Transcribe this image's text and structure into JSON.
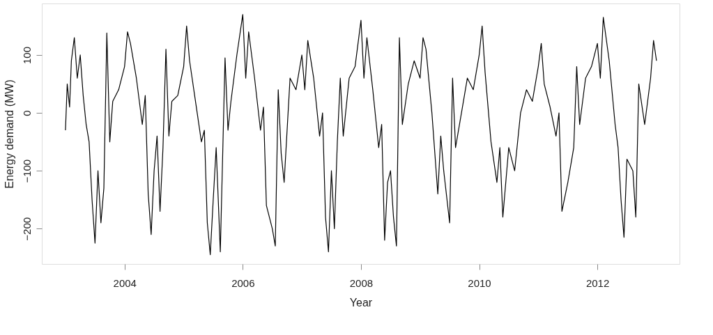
{
  "chart_data": {
    "type": "line",
    "xlabel": "Year",
    "ylabel": "Energy demand (MW)",
    "x": [
      2003.0,
      2003.03,
      2003.07,
      2003.1,
      2003.15,
      2003.2,
      2003.25,
      2003.3,
      2003.35,
      2003.4,
      2003.45,
      2003.5,
      2003.55,
      2003.6,
      2003.65,
      2003.7,
      2003.75,
      2003.8,
      2003.9,
      2004.0,
      2004.05,
      2004.1,
      2004.2,
      2004.3,
      2004.35,
      2004.4,
      2004.45,
      2004.5,
      2004.55,
      2004.6,
      2004.65,
      2004.7,
      2004.75,
      2004.8,
      2004.9,
      2005.0,
      2005.05,
      2005.1,
      2005.2,
      2005.3,
      2005.35,
      2005.4,
      2005.45,
      2005.5,
      2005.55,
      2005.62,
      2005.7,
      2005.75,
      2005.8,
      2005.9,
      2006.0,
      2006.05,
      2006.1,
      2006.2,
      2006.3,
      2006.35,
      2006.4,
      2006.5,
      2006.55,
      2006.6,
      2006.65,
      2006.7,
      2006.8,
      2006.9,
      2007.0,
      2007.05,
      2007.1,
      2007.2,
      2007.3,
      2007.35,
      2007.4,
      2007.45,
      2007.5,
      2007.55,
      2007.6,
      2007.65,
      2007.7,
      2007.8,
      2007.9,
      2008.0,
      2008.05,
      2008.1,
      2008.2,
      2008.3,
      2008.35,
      2008.4,
      2008.45,
      2008.5,
      2008.55,
      2008.6,
      2008.65,
      2008.7,
      2008.8,
      2008.9,
      2009.0,
      2009.05,
      2009.1,
      2009.2,
      2009.3,
      2009.35,
      2009.4,
      2009.5,
      2009.55,
      2009.6,
      2009.7,
      2009.8,
      2009.9,
      2010.0,
      2010.05,
      2010.1,
      2010.2,
      2010.3,
      2010.35,
      2010.4,
      2010.5,
      2010.6,
      2010.7,
      2010.8,
      2010.9,
      2011.0,
      2011.05,
      2011.1,
      2011.2,
      2011.3,
      2011.35,
      2011.4,
      2011.5,
      2011.6,
      2011.65,
      2011.7,
      2011.8,
      2011.9,
      2012.0,
      2012.05,
      2012.1,
      2012.2,
      2012.3,
      2012.35,
      2012.4,
      2012.45,
      2012.5,
      2012.6,
      2012.65,
      2012.7,
      2012.8,
      2012.9,
      2012.95,
      2013.0
    ],
    "values": [
      -30,
      50,
      10,
      90,
      130,
      60,
      100,
      30,
      -20,
      -50,
      -150,
      -225,
      -100,
      -190,
      -130,
      138,
      -50,
      20,
      40,
      80,
      140,
      120,
      60,
      -20,
      30,
      -140,
      -210,
      -100,
      -40,
      -170,
      -60,
      110,
      -40,
      20,
      30,
      80,
      150,
      90,
      20,
      -50,
      -30,
      -190,
      -245,
      -150,
      -60,
      -240,
      95,
      -30,
      20,
      100,
      170,
      60,
      140,
      60,
      -30,
      10,
      -160,
      -200,
      -230,
      40,
      -70,
      -120,
      60,
      40,
      100,
      40,
      125,
      60,
      -40,
      0,
      -180,
      -240,
      -100,
      -200,
      -50,
      60,
      -40,
      60,
      80,
      160,
      60,
      130,
      40,
      -60,
      -20,
      -220,
      -120,
      -100,
      -180,
      -230,
      130,
      -20,
      50,
      90,
      60,
      130,
      110,
      0,
      -140,
      -40,
      -100,
      -190,
      60,
      -60,
      0,
      60,
      40,
      100,
      150,
      70,
      -50,
      -120,
      -60,
      -180,
      -60,
      -100,
      0,
      40,
      20,
      80,
      120,
      50,
      10,
      -40,
      0,
      -170,
      -120,
      -60,
      80,
      -20,
      60,
      80,
      120,
      60,
      165,
      90,
      -20,
      -60,
      -150,
      -215,
      -80,
      -100,
      -180,
      50,
      -20,
      60,
      125,
      90
    ],
    "color": "#000000",
    "xlim": [
      2002.6,
      2013.39
    ],
    "ylim": [
      -261,
      189
    ],
    "xticks": [
      2004,
      2006,
      2008,
      2010,
      2012
    ],
    "yticks": [
      -200,
      -100,
      0,
      100
    ],
    "grid": false
  }
}
